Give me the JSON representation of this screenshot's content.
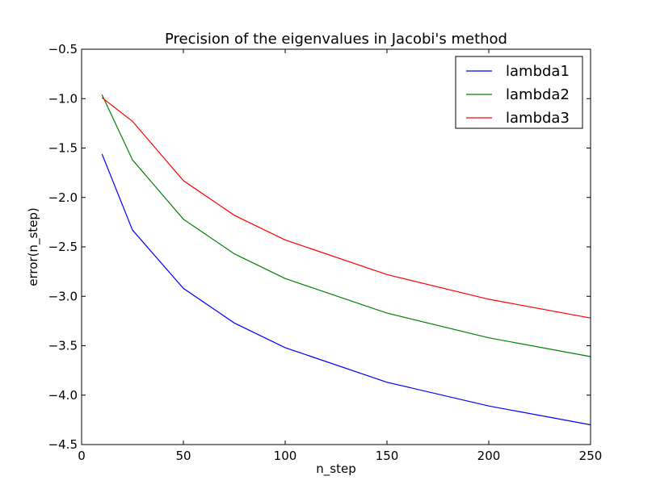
{
  "chart_data": {
    "type": "line",
    "title": "Precision of the eigenvalues in Jacobi's method",
    "xlabel": "n_step",
    "ylabel": "error(n_step)",
    "xlim": [
      0,
      250
    ],
    "ylim": [
      -4.5,
      -0.5
    ],
    "x_ticks": [
      0,
      50,
      100,
      150,
      200,
      250
    ],
    "x_tick_labels": [
      "0",
      "50",
      "100",
      "150",
      "200",
      "250"
    ],
    "y_ticks": [
      -0.5,
      -1.0,
      -1.5,
      -2.0,
      -2.5,
      -3.0,
      -3.5,
      -4.0,
      -4.5
    ],
    "y_tick_labels": [
      "−0.5",
      "−1.0",
      "−1.5",
      "−2.0",
      "−2.5",
      "−3.0",
      "−3.5",
      "−4.0",
      "−4.5"
    ],
    "grid": false,
    "legend_position": "top-right",
    "x": [
      10,
      25,
      50,
      75,
      100,
      150,
      200,
      250
    ],
    "series": [
      {
        "name": "lambda1",
        "color": "#0000ff",
        "values": [
          -1.56,
          -2.33,
          -2.92,
          -3.27,
          -3.52,
          -3.87,
          -4.11,
          -4.3
        ]
      },
      {
        "name": "lambda2",
        "color": "#008000",
        "values": [
          -0.96,
          -1.62,
          -2.22,
          -2.57,
          -2.82,
          -3.17,
          -3.42,
          -3.61
        ]
      },
      {
        "name": "lambda3",
        "color": "#ff0000",
        "values": [
          -0.99,
          -1.23,
          -1.83,
          -2.18,
          -2.43,
          -2.78,
          -3.03,
          -3.22
        ]
      }
    ]
  }
}
